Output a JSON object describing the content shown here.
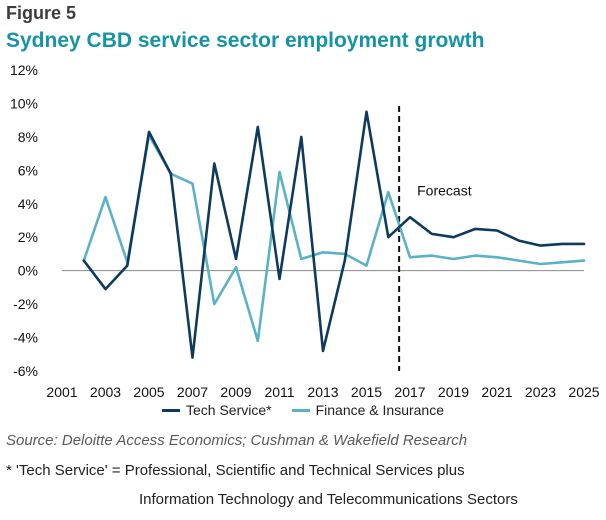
{
  "figure_label": "Figure 5",
  "title": "Sydney CBD service sector employment growth",
  "source": "Source: Deloitte Access Economics; Cushman & Wakefield Research",
  "footnote_line1": "* 'Tech Service' = Professional, Scientific and Technical Services plus",
  "footnote_line2": "Information Technology and Telecommunications Sectors",
  "chart_data": {
    "type": "line",
    "title": "Sydney CBD service sector employment growth",
    "xlabel": "",
    "ylabel": "",
    "ylim": [
      -6,
      12
    ],
    "xlim": [
      2001,
      2025
    ],
    "y_ticks": [
      "12%",
      "10%",
      "8%",
      "6%",
      "4%",
      "2%",
      "0%",
      "-2%",
      "-4%",
      "-6%"
    ],
    "x_ticks": [
      "2001",
      "2003",
      "2005",
      "2007",
      "2009",
      "2011",
      "2013",
      "2015",
      "2017",
      "2019",
      "2021",
      "2023",
      "2025"
    ],
    "annotation": "Forecast",
    "forecast_start": 2016.5,
    "grid": false,
    "legend_position": "bottom",
    "series": [
      {
        "name": "Tech Service*",
        "color": "#0e3a5c",
        "x": [
          2002,
          2003,
          2004,
          2005,
          2006,
          2007,
          2008,
          2009,
          2010,
          2011,
          2012,
          2013,
          2014,
          2015,
          2016,
          2017,
          2018,
          2019,
          2020,
          2021,
          2022,
          2023,
          2024,
          2025
        ],
        "values": [
          0.6,
          -1.1,
          0.3,
          8.3,
          5.8,
          -5.2,
          6.4,
          0.7,
          8.6,
          -0.5,
          8.0,
          -4.8,
          0.6,
          9.5,
          2.0,
          3.2,
          2.2,
          2.0,
          2.5,
          2.4,
          1.8,
          1.5,
          1.6,
          1.6
        ]
      },
      {
        "name": "Finance & Insurance",
        "color": "#5ab2c6",
        "x": [
          2002,
          2003,
          2004,
          2005,
          2006,
          2007,
          2008,
          2009,
          2010,
          2011,
          2012,
          2013,
          2014,
          2015,
          2016,
          2017,
          2018,
          2019,
          2020,
          2021,
          2022,
          2023,
          2024,
          2025
        ],
        "values": [
          0.6,
          4.4,
          0.5,
          8.1,
          5.8,
          5.2,
          -2.0,
          0.2,
          -4.2,
          5.9,
          0.7,
          1.1,
          1.0,
          0.3,
          4.7,
          0.8,
          0.9,
          0.7,
          0.9,
          0.8,
          0.6,
          0.4,
          0.5,
          0.6
        ]
      }
    ]
  }
}
